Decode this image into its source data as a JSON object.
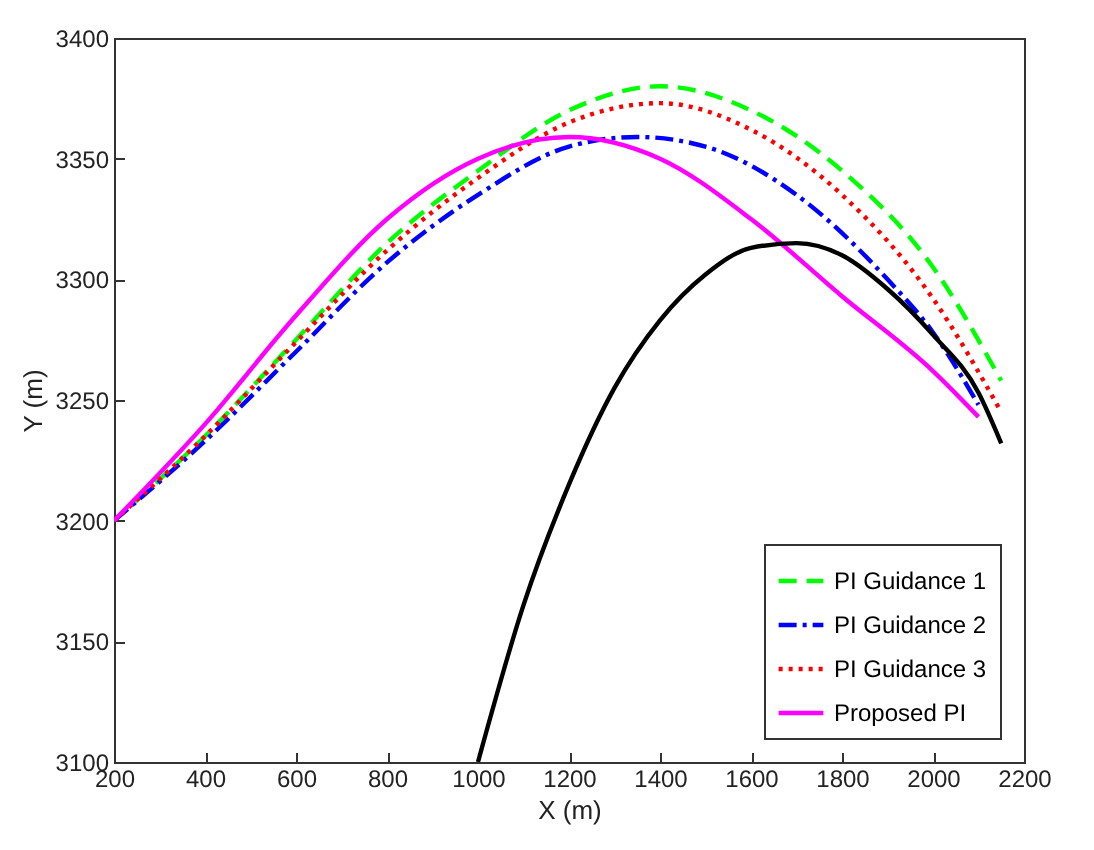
{
  "chart_data": {
    "type": "line",
    "xlabel": "X (m)",
    "ylabel": "Y (m)",
    "xlim": [
      200,
      2200
    ],
    "xticks": [
      200,
      400,
      600,
      800,
      1000,
      1200,
      1400,
      1600,
      1800,
      2000,
      2200
    ],
    "ylim": [
      3100,
      3400
    ],
    "yticks": [
      3100,
      3150,
      3200,
      3250,
      3300,
      3350,
      3400
    ],
    "grid": false,
    "legend": "bottom right",
    "marker": "none",
    "series": [
      {
        "name": "PI Guidance 1",
        "color": "#00ff00",
        "line_style": "dashed",
        "x": [
          200,
          400,
          600,
          800,
          1000,
          1200,
          1400,
          1600,
          1800,
          2000,
          2150
        ],
        "values": [
          3200,
          3235,
          3275,
          3315,
          3345,
          3370,
          3380,
          3370,
          3345,
          3305,
          3258
        ]
      },
      {
        "name": "PI Guidance 2",
        "color": "#0000ff",
        "line_style": "dashdot",
        "x": [
          200,
          400,
          600,
          800,
          1000,
          1200,
          1350,
          1500,
          1700,
          1900,
          2000,
          2100
        ],
        "values": [
          3200,
          3233,
          3270,
          3307,
          3335,
          3355,
          3359,
          3355,
          3335,
          3300,
          3278,
          3248
        ]
      },
      {
        "name": "PI Guidance 3",
        "color": "#ff0000",
        "line_style": "dotted",
        "x": [
          200,
          400,
          600,
          800,
          1000,
          1200,
          1400,
          1600,
          1800,
          2000,
          2150
        ],
        "values": [
          3200,
          3235,
          3274,
          3312,
          3342,
          3365,
          3373,
          3362,
          3335,
          3292,
          3245
        ]
      },
      {
        "name": "Proposed PI",
        "color": "#ff00ff",
        "line_style": "solid",
        "x": [
          200,
          400,
          600,
          800,
          1000,
          1200,
          1400,
          1600,
          1800,
          2000,
          2100
        ],
        "values": [
          3200,
          3240,
          3285,
          3325,
          3350,
          3359,
          3350,
          3325,
          3293,
          3262,
          3243
        ]
      },
      {
        "color": "#000000",
        "line_style": "solid",
        "x": [
          1000,
          1100,
          1200,
          1300,
          1400,
          1500,
          1600,
          1700,
          1800,
          1900,
          2000,
          2100,
          2150
        ],
        "values": [
          3100,
          3165,
          3215,
          3255,
          3283,
          3302,
          3313,
          3315,
          3310,
          3296,
          3277,
          3253,
          3232
        ]
      }
    ]
  }
}
